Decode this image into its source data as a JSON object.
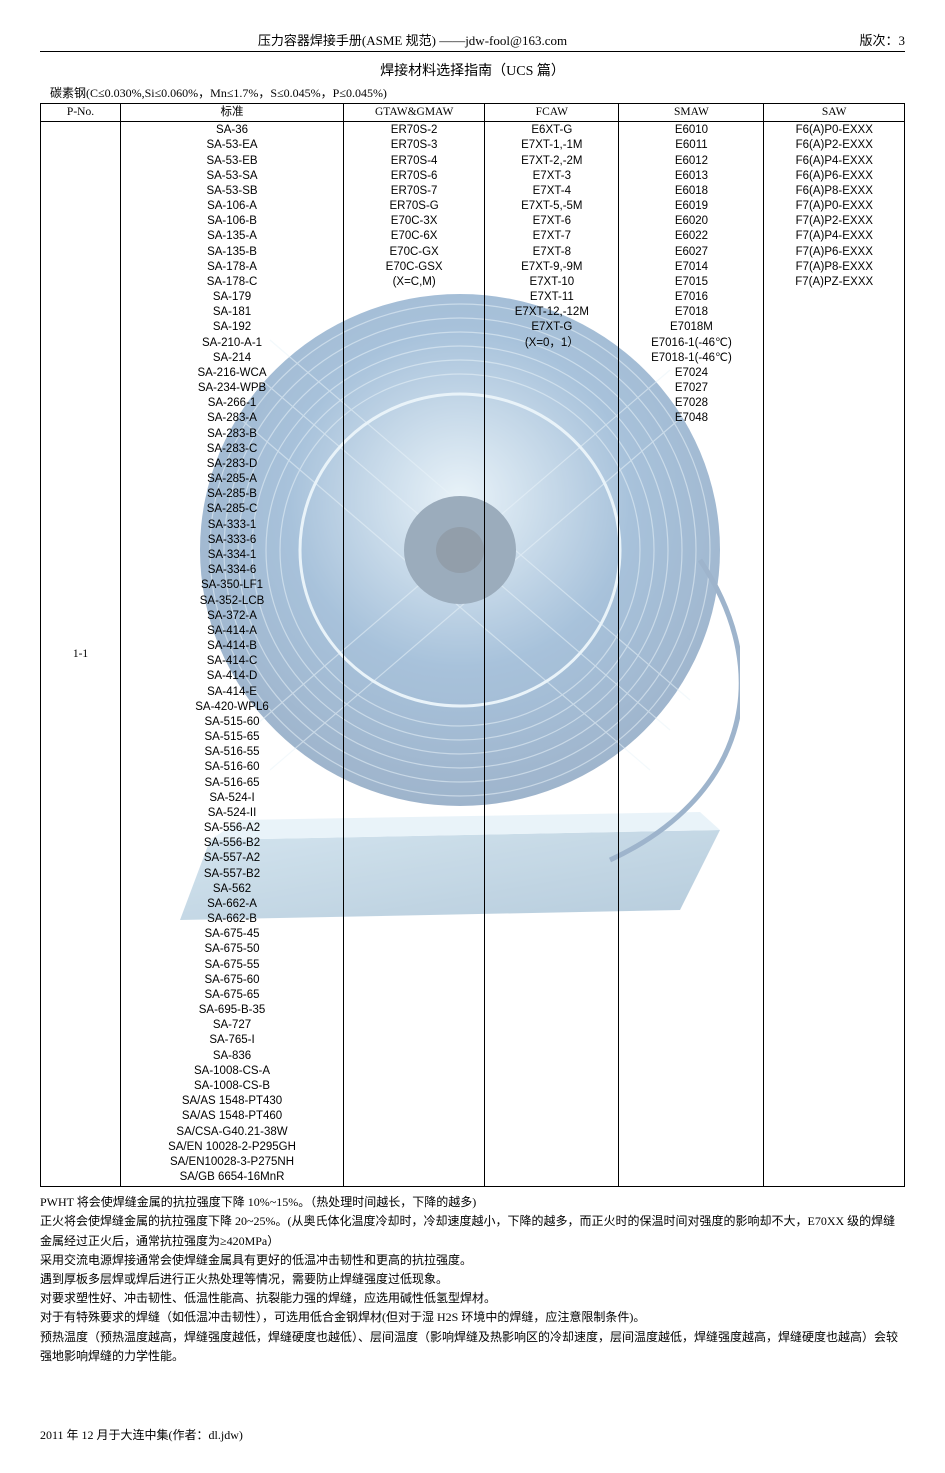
{
  "header": {
    "title": "压力容器焊接手册(ASME 规范) ——jdw-fool@163.com",
    "version_label": "版次：3"
  },
  "section_title": "焊接材料选择指南（UCS 篇）",
  "spec_line": "碳素钢(C≤0.030%,Si≤0.060%，Mn≤1.7%，S≤0.045%，P≤0.045%)",
  "table": {
    "headers": [
      "P-No.",
      "标准",
      "GTAW&GMAW",
      "FCAW",
      "SMAW",
      "SAW"
    ],
    "pno": "1-1",
    "columns": {
      "std": [
        "SA-36",
        "SA-53-EA",
        "SA-53-EB",
        "SA-53-SA",
        "SA-53-SB",
        "SA-106-A",
        "SA-106-B",
        "SA-135-A",
        "SA-135-B",
        "SA-178-A",
        "SA-178-C",
        "SA-179",
        "SA-181",
        "SA-192",
        "SA-210-A-1",
        "SA-214",
        "SA-216-WCA",
        "SA-234-WPB",
        "SA-266-1",
        "SA-283-A",
        "SA-283-B",
        "SA-283-C",
        "SA-283-D",
        "SA-285-A",
        "SA-285-B",
        "SA-285-C",
        "SA-333-1",
        "SA-333-6",
        "SA-334-1",
        "SA-334-6",
        "SA-350-LF1",
        "SA-352-LCB",
        "SA-372-A",
        "SA-414-A",
        "SA-414-B",
        "SA-414-C",
        "SA-414-D",
        "SA-414-E",
        "SA-420-WPL6",
        "SA-515-60",
        "SA-515-65",
        "SA-516-55",
        "SA-516-60",
        "SA-516-65",
        "SA-524-I",
        "SA-524-II",
        "SA-556-A2",
        "SA-556-B2",
        "SA-557-A2",
        "SA-557-B2",
        "SA-562",
        "SA-662-A",
        "SA-662-B",
        "SA-675-45",
        "SA-675-50",
        "SA-675-55",
        "SA-675-60",
        "SA-675-65",
        "SA-695-B-35",
        "SA-727",
        "SA-765-I",
        "SA-836",
        "SA-1008-CS-A",
        "SA-1008-CS-B",
        "SA/AS 1548-PT430",
        "SA/AS 1548-PT460",
        "SA/CSA-G40.21-38W",
        "SA/EN 10028-2-P295GH",
        "SA/EN10028-3-P275NH",
        "SA/GB 6654-16MnR"
      ],
      "gtaw_gmaw": [
        "ER70S-2",
        "ER70S-3",
        "ER70S-4",
        "ER70S-6",
        "ER70S-7",
        "ER70S-G",
        "E70C-3X",
        "E70C-6X",
        "E70C-GX",
        "E70C-GSX",
        "(X=C,M)"
      ],
      "fcaw": [
        "E6XT-G",
        "E7XT-1,-1M",
        "E7XT-2,-2M",
        "E7XT-3",
        "E7XT-4",
        "E7XT-5,-5M",
        "E7XT-6",
        "E7XT-7",
        "E7XT-8",
        "E7XT-9,-9M",
        "E7XT-10",
        "E7XT-11",
        "E7XT-12,-12M",
        "E7XT-G",
        "(X=0，1）"
      ],
      "smaw": [
        "E6010",
        "E6011",
        "E6012",
        "E6013",
        "E6018",
        "E6019",
        "E6020",
        "E6022",
        "E6027",
        "E7014",
        "E7015",
        "E7016",
        "E7018",
        "E7018M",
        "E7016-1(-46℃)",
        "E7018-1(-46℃)",
        "E7024",
        "E7027",
        "E7028",
        "E7048"
      ],
      "saw": [
        "F6(A)P0-EXXX",
        "F6(A)P2-EXXX",
        "F6(A)P4-EXXX",
        "F6(A)P6-EXXX",
        "F6(A)P8-EXXX",
        "F7(A)P0-EXXX",
        "F7(A)P2-EXXX",
        "F7(A)P4-EXXX",
        "F7(A)P6-EXXX",
        "F7(A)P8-EXXX",
        "F7(A)PZ-EXXX"
      ]
    }
  },
  "notes": [
    "PWHT 将会使焊缝金属的抗拉强度下降 10%~15%。（热处理时间越长，下降的越多)",
    "正火将会使焊缝金属的抗拉强度下降 20~25%。(从奥氏体化温度冷却时，冷却速度越小，下降的越多，而正火时的保温时间对强度的影响却不大，E70XX 级的焊缝金属经过正火后，通常抗拉强度为≥420MPa）",
    "采用交流电源焊接通常会使焊缝金属具有更好的低温冲击韧性和更高的抗拉强度。",
    "遇到厚板多层焊或焊后进行正火热处理等情况，需要防止焊缝强度过低现象。",
    "对要求塑性好、冲击韧性、低温性能高、抗裂能力强的焊缝，应选用碱性低氢型焊材。",
    "对于有特殊要求的焊缝（如低温冲击韧性），可选用低合金钢焊材(但对于湿 H2S 环境中的焊缝，应注意限制条件)。",
    "预热温度（预热温度越高，焊缝强度越低，焊缝硬度也越低）、层间温度（影响焊缝及热影响区的冷却速度，层间温度越低，焊缝强度越高，焊缝硬度也越高）会较强地影响焊缝的力学性能。"
  ],
  "footer": "2011 年 12 月于大连中集(作者：dl.jdw)",
  "illustration": {
    "colors": {
      "spool_outer": "#2b5b8f",
      "spool_mid": "#3f79b0",
      "spool_inner": "#6ea7d1",
      "wire_hi": "#cfe5f2",
      "plate": "#5f8fb3",
      "plate_light": "#9fc4db"
    }
  }
}
